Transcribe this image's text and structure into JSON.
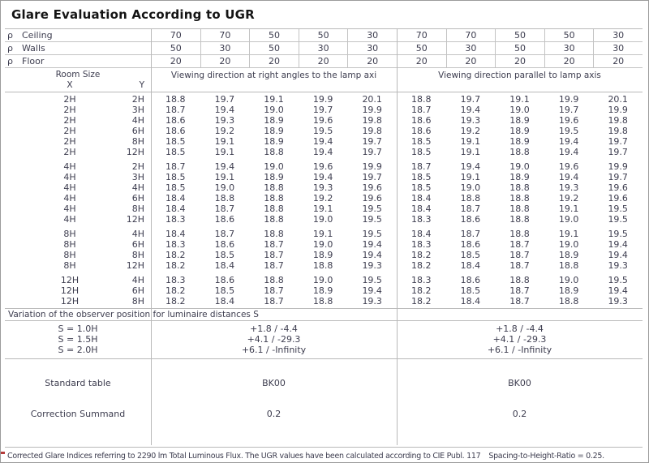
{
  "title": "Glare Evaluation According to UGR",
  "reflectances": {
    "symbol": "ρ",
    "rows": [
      {
        "name": "Ceiling",
        "values": [
          "70",
          "70",
          "50",
          "50",
          "30",
          "70",
          "70",
          "50",
          "50",
          "30"
        ]
      },
      {
        "name": "Walls",
        "values": [
          "50",
          "30",
          "50",
          "30",
          "30",
          "50",
          "30",
          "50",
          "30",
          "30"
        ]
      },
      {
        "name": "Floor",
        "values": [
          "20",
          "20",
          "20",
          "20",
          "20",
          "20",
          "20",
          "20",
          "20",
          "20"
        ]
      }
    ]
  },
  "header": {
    "room_size": "Room Size",
    "x": "X",
    "y": "Y",
    "left_title": "Viewing direction at right angles to the lamp axi",
    "right_title": "Viewing direction parallel to lamp axis"
  },
  "ugr_table": {
    "groups": [
      {
        "rows": [
          {
            "x": "2H",
            "y": "2H",
            "left": [
              "18.8",
              "19.7",
              "19.1",
              "19.9",
              "20.1"
            ],
            "right": [
              "18.8",
              "19.7",
              "19.1",
              "19.9",
              "20.1"
            ]
          },
          {
            "x": "2H",
            "y": "3H",
            "left": [
              "18.7",
              "19.4",
              "19.0",
              "19.7",
              "19.9"
            ],
            "right": [
              "18.7",
              "19.4",
              "19.0",
              "19.7",
              "19.9"
            ]
          },
          {
            "x": "2H",
            "y": "4H",
            "left": [
              "18.6",
              "19.3",
              "18.9",
              "19.6",
              "19.8"
            ],
            "right": [
              "18.6",
              "19.3",
              "18.9",
              "19.6",
              "19.8"
            ]
          },
          {
            "x": "2H",
            "y": "6H",
            "left": [
              "18.6",
              "19.2",
              "18.9",
              "19.5",
              "19.8"
            ],
            "right": [
              "18.6",
              "19.2",
              "18.9",
              "19.5",
              "19.8"
            ]
          },
          {
            "x": "2H",
            "y": "8H",
            "left": [
              "18.5",
              "19.1",
              "18.9",
              "19.4",
              "19.7"
            ],
            "right": [
              "18.5",
              "19.1",
              "18.9",
              "19.4",
              "19.7"
            ]
          },
          {
            "x": "2H",
            "y": "12H",
            "left": [
              "18.5",
              "19.1",
              "18.8",
              "19.4",
              "19.7"
            ],
            "right": [
              "18.5",
              "19.1",
              "18.8",
              "19.4",
              "19.7"
            ]
          }
        ]
      },
      {
        "rows": [
          {
            "x": "4H",
            "y": "2H",
            "left": [
              "18.7",
              "19.4",
              "19.0",
              "19.6",
              "19.9"
            ],
            "right": [
              "18.7",
              "19.4",
              "19.0",
              "19.6",
              "19.9"
            ]
          },
          {
            "x": "4H",
            "y": "3H",
            "left": [
              "18.5",
              "19.1",
              "18.9",
              "19.4",
              "19.7"
            ],
            "right": [
              "18.5",
              "19.1",
              "18.9",
              "19.4",
              "19.7"
            ]
          },
          {
            "x": "4H",
            "y": "4H",
            "left": [
              "18.5",
              "19.0",
              "18.8",
              "19.3",
              "19.6"
            ],
            "right": [
              "18.5",
              "19.0",
              "18.8",
              "19.3",
              "19.6"
            ]
          },
          {
            "x": "4H",
            "y": "6H",
            "left": [
              "18.4",
              "18.8",
              "18.8",
              "19.2",
              "19.6"
            ],
            "right": [
              "18.4",
              "18.8",
              "18.8",
              "19.2",
              "19.6"
            ]
          },
          {
            "x": "4H",
            "y": "8H",
            "left": [
              "18.4",
              "18.7",
              "18.8",
              "19.1",
              "19.5"
            ],
            "right": [
              "18.4",
              "18.7",
              "18.8",
              "19.1",
              "19.5"
            ]
          },
          {
            "x": "4H",
            "y": "12H",
            "left": [
              "18.3",
              "18.6",
              "18.8",
              "19.0",
              "19.5"
            ],
            "right": [
              "18.3",
              "18.6",
              "18.8",
              "19.0",
              "19.5"
            ]
          }
        ]
      },
      {
        "rows": [
          {
            "x": "8H",
            "y": "4H",
            "left": [
              "18.4",
              "18.7",
              "18.8",
              "19.1",
              "19.5"
            ],
            "right": [
              "18.4",
              "18.7",
              "18.8",
              "19.1",
              "19.5"
            ]
          },
          {
            "x": "8H",
            "y": "6H",
            "left": [
              "18.3",
              "18.6",
              "18.7",
              "19.0",
              "19.4"
            ],
            "right": [
              "18.3",
              "18.6",
              "18.7",
              "19.0",
              "19.4"
            ]
          },
          {
            "x": "8H",
            "y": "8H",
            "left": [
              "18.2",
              "18.5",
              "18.7",
              "18.9",
              "19.4"
            ],
            "right": [
              "18.2",
              "18.5",
              "18.7",
              "18.9",
              "19.4"
            ]
          },
          {
            "x": "8H",
            "y": "12H",
            "left": [
              "18.2",
              "18.4",
              "18.7",
              "18.8",
              "19.3"
            ],
            "right": [
              "18.2",
              "18.4",
              "18.7",
              "18.8",
              "19.3"
            ]
          }
        ]
      },
      {
        "rows": [
          {
            "x": "12H",
            "y": "4H",
            "left": [
              "18.3",
              "18.6",
              "18.8",
              "19.0",
              "19.5"
            ],
            "right": [
              "18.3",
              "18.6",
              "18.8",
              "19.0",
              "19.5"
            ]
          },
          {
            "x": "12H",
            "y": "6H",
            "left": [
              "18.2",
              "18.5",
              "18.7",
              "18.9",
              "19.4"
            ],
            "right": [
              "18.2",
              "18.5",
              "18.7",
              "18.9",
              "19.4"
            ]
          },
          {
            "x": "12H",
            "y": "8H",
            "left": [
              "18.2",
              "18.4",
              "18.7",
              "18.8",
              "19.3"
            ],
            "right": [
              "18.2",
              "18.4",
              "18.7",
              "18.8",
              "19.3"
            ]
          }
        ]
      }
    ]
  },
  "variation": {
    "label": "Variation of the observer position for luminaire distances S",
    "rows": [
      {
        "s": "S = 1.0H",
        "left": "+1.8 / -4.4",
        "right": "+1.8 / -4.4"
      },
      {
        "s": "S = 1.5H",
        "left": "+4.1 / -29.3",
        "right": "+4.1 / -29.3"
      },
      {
        "s": "S = 2.0H",
        "left": "+6.1 / -Infinity",
        "right": "+6.1 / -Infinity"
      }
    ]
  },
  "summary": {
    "rows": [
      {
        "label": "Standard table",
        "left": "BK00",
        "right": "BK00"
      },
      {
        "label": "Correction Summand",
        "left": "0.2",
        "right": "0.2"
      }
    ]
  },
  "footer": {
    "text": "Corrected Glare Indices referring to 2290 lm Total Luminous Flux. The UGR values have been calculated according to CIE Publ. 117",
    "ratio": "Spacing-to-Height-Ratio = 0.25."
  },
  "colors": {
    "text": "#3d3d4f",
    "line": "#b9b9b9",
    "title": "#141414",
    "edge_marker": "#b43a3a"
  }
}
